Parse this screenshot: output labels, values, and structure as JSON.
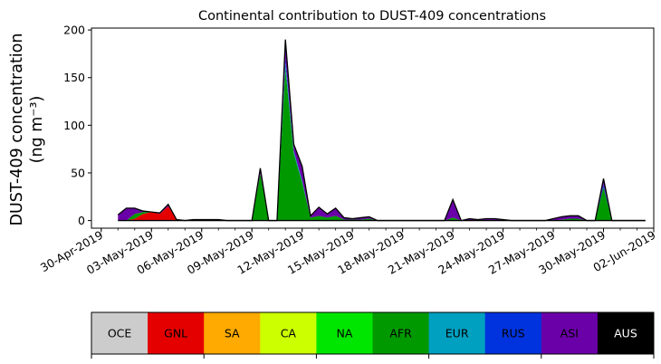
{
  "chart_data": {
    "type": "area",
    "stacked": true,
    "title": "Continental contribution to DUST-409 concentrations",
    "ylabel_line1": "DUST-409 concentration",
    "ylabel_line2": "(ng m⁻³)",
    "xlabel": "",
    "ylim": [
      -8,
      202
    ],
    "yticks": [
      0,
      50,
      100,
      150,
      200
    ],
    "xlim": [
      "2019-04-29T10:00",
      "2019-06-02T00:00"
    ],
    "xticks": [
      "2019-04-30",
      "2019-05-03",
      "2019-05-06",
      "2019-05-09",
      "2019-05-12",
      "2019-05-15",
      "2019-05-18",
      "2019-05-21",
      "2019-05-24",
      "2019-05-27",
      "2019-05-30",
      "2019-06-02"
    ],
    "xtick_labels": [
      "30-Apr-2019",
      "03-May-2019",
      "06-May-2019",
      "09-May-2019",
      "12-May-2019",
      "15-May-2019",
      "18-May-2019",
      "21-May-2019",
      "24-May-2019",
      "27-May-2019",
      "30-May-2019",
      "02-Jun-2019"
    ],
    "grid": false,
    "legend_placement": "below",
    "x": [
      "2019-05-01T00:00",
      "2019-05-01T12:00",
      "2019-05-02T00:00",
      "2019-05-02T12:00",
      "2019-05-03T00:00",
      "2019-05-03T12:00",
      "2019-05-04T00:00",
      "2019-05-04T12:00",
      "2019-05-05T00:00",
      "2019-05-05T12:00",
      "2019-05-06T00:00",
      "2019-05-06T12:00",
      "2019-05-07T00:00",
      "2019-05-07T12:00",
      "2019-05-08T00:00",
      "2019-05-08T12:00",
      "2019-05-09T00:00",
      "2019-05-09T12:00",
      "2019-05-10T00:00",
      "2019-05-10T12:00",
      "2019-05-11T00:00",
      "2019-05-11T12:00",
      "2019-05-12T00:00",
      "2019-05-12T12:00",
      "2019-05-13T00:00",
      "2019-05-13T12:00",
      "2019-05-14T00:00",
      "2019-05-14T12:00",
      "2019-05-15T00:00",
      "2019-05-15T12:00",
      "2019-05-16T00:00",
      "2019-05-16T12:00",
      "2019-05-17T00:00",
      "2019-05-17T12:00",
      "2019-05-18T00:00",
      "2019-05-18T12:00",
      "2019-05-19T00:00",
      "2019-05-19T12:00",
      "2019-05-20T00:00",
      "2019-05-20T12:00",
      "2019-05-21T00:00",
      "2019-05-21T12:00",
      "2019-05-22T00:00",
      "2019-05-22T12:00",
      "2019-05-23T00:00",
      "2019-05-23T12:00",
      "2019-05-24T00:00",
      "2019-05-24T12:00",
      "2019-05-25T00:00",
      "2019-05-25T12:00",
      "2019-05-26T00:00",
      "2019-05-26T12:00",
      "2019-05-27T00:00",
      "2019-05-27T12:00",
      "2019-05-28T00:00",
      "2019-05-28T12:00",
      "2019-05-29T00:00",
      "2019-05-29T12:00",
      "2019-05-30T00:00",
      "2019-05-30T12:00",
      "2019-05-31T00:00",
      "2019-05-31T12:00",
      "2019-06-01T00:00",
      "2019-06-01T12:00"
    ],
    "series": [
      {
        "name": "OCE",
        "color": "#cccccc",
        "values": [
          0,
          0,
          0,
          0,
          0,
          0,
          0,
          0,
          0,
          0,
          0,
          0,
          0,
          0,
          0,
          0,
          0,
          0,
          0,
          0,
          0,
          0,
          0,
          0,
          0,
          0,
          0,
          0,
          0,
          0,
          0,
          0,
          0,
          0,
          0,
          0,
          0,
          0,
          0,
          0,
          0,
          0,
          0,
          0,
          0,
          0,
          0,
          0,
          0,
          0,
          0,
          0,
          0,
          0,
          0,
          0,
          0,
          0,
          0,
          0,
          0,
          0,
          0,
          0
        ]
      },
      {
        "name": "GNL",
        "color": "#e50000",
        "values": [
          0,
          0,
          2,
          7,
          9,
          7,
          15,
          1,
          0,
          0,
          0,
          0,
          0,
          0,
          0,
          0,
          0,
          0,
          0,
          0,
          0,
          0,
          0,
          0,
          0,
          0,
          0,
          0,
          0,
          0,
          0,
          0,
          0,
          0,
          0,
          0,
          0,
          0,
          0,
          0,
          0,
          0,
          0,
          0,
          0,
          0,
          0,
          0,
          0,
          0,
          0,
          0,
          0,
          0,
          0,
          0,
          0,
          0,
          0,
          0,
          0,
          0,
          0,
          0
        ]
      },
      {
        "name": "SA",
        "color": "#ffaa00",
        "values": [
          0,
          0,
          0,
          0,
          0,
          0,
          0,
          0,
          0,
          0,
          0,
          0,
          0,
          0,
          0,
          0,
          0,
          0,
          0,
          0,
          0,
          0,
          0,
          0,
          0,
          0,
          0,
          0,
          0,
          0,
          0,
          0,
          0,
          0,
          0,
          0,
          0,
          0,
          0,
          0,
          0,
          0,
          0,
          0,
          0,
          0,
          0,
          0,
          0,
          0,
          0,
          0,
          0,
          0,
          0,
          0,
          0,
          0,
          0,
          0,
          0,
          0,
          0,
          0
        ]
      },
      {
        "name": "CA",
        "color": "#ccff00",
        "values": [
          0,
          0,
          0,
          0,
          0,
          0,
          0,
          0,
          0,
          0,
          0,
          0,
          0,
          0,
          0,
          0,
          0,
          0,
          0,
          0,
          0,
          0,
          0,
          0,
          0,
          0,
          0,
          0,
          0,
          0,
          0,
          0,
          0,
          0,
          0,
          0,
          0,
          0,
          0,
          0,
          0,
          0,
          0,
          0,
          0,
          0,
          0,
          0,
          0,
          0,
          0,
          0,
          0,
          0,
          0,
          0,
          0,
          0,
          0,
          0,
          0,
          0,
          0,
          0
        ]
      },
      {
        "name": "NA",
        "color": "#00e600",
        "values": [
          0,
          0,
          0,
          0,
          0,
          0,
          0,
          0,
          0,
          0,
          0,
          0,
          0,
          0,
          0,
          0,
          0,
          0,
          0,
          0,
          0,
          0,
          0,
          0,
          0,
          0,
          0,
          0,
          0,
          0,
          0,
          0,
          0,
          0,
          0,
          0,
          0,
          0,
          0,
          0,
          0,
          0,
          0,
          0,
          0,
          0,
          0,
          0,
          0,
          0,
          0,
          0,
          0,
          0,
          0,
          0,
          0,
          0,
          0,
          0,
          0,
          0,
          0,
          0
        ]
      },
      {
        "name": "AFR",
        "color": "#009900",
        "values": [
          0,
          0,
          5,
          2,
          0,
          0,
          0,
          0,
          0,
          1,
          1,
          1,
          1,
          0,
          0,
          0,
          0,
          49,
          0,
          0,
          160,
          70,
          40,
          3,
          5,
          3,
          5,
          1,
          1,
          1,
          2,
          0,
          0,
          0,
          0,
          0,
          0,
          0,
          0,
          0,
          3,
          0,
          0,
          0,
          0,
          0,
          0,
          0,
          0,
          0,
          0,
          0,
          0,
          1,
          2,
          2,
          0,
          0,
          35,
          0,
          0,
          0,
          0,
          0
        ]
      },
      {
        "name": "EUR",
        "color": "#00a0c0",
        "values": [
          0,
          0,
          0,
          0,
          0,
          0,
          0,
          0,
          0,
          0,
          0,
          0,
          0,
          0,
          0,
          0,
          0,
          0,
          0,
          0,
          5,
          3,
          2,
          0,
          0,
          0,
          0,
          0,
          0,
          0,
          0,
          0,
          0,
          0,
          0,
          0,
          0,
          0,
          0,
          0,
          0,
          0,
          0,
          0,
          0,
          0,
          0,
          0,
          0,
          0,
          0,
          0,
          0,
          0,
          0,
          0,
          0,
          0,
          0,
          0,
          0,
          0,
          0,
          0
        ]
      },
      {
        "name": "RUS",
        "color": "#0033dd",
        "values": [
          0,
          0,
          0,
          0,
          0,
          0,
          0,
          0,
          0,
          0,
          0,
          0,
          0,
          0,
          0,
          0,
          0,
          0,
          0,
          0,
          5,
          0,
          0,
          0,
          0,
          0,
          0,
          0,
          0,
          0,
          0,
          0,
          0,
          0,
          0,
          0,
          0,
          0,
          0,
          0,
          0,
          0,
          0,
          0,
          0,
          0,
          0,
          0,
          0,
          0,
          0,
          0,
          0,
          0,
          0,
          0,
          0,
          0,
          3,
          0,
          0,
          0,
          0,
          0
        ]
      },
      {
        "name": "ASI",
        "color": "#6a00a8",
        "values": [
          6,
          13,
          6,
          1,
          0,
          1,
          2,
          0,
          0,
          0,
          0,
          0,
          0,
          0,
          0,
          0,
          0,
          6,
          0,
          0,
          20,
          7,
          15,
          2,
          9,
          4,
          8,
          2,
          1,
          2,
          2,
          0,
          0,
          0,
          0,
          0,
          0,
          0,
          0,
          0,
          19,
          0,
          2,
          1,
          2,
          2,
          1,
          0,
          0,
          0,
          0,
          0,
          2,
          3,
          3,
          3,
          0,
          0,
          6,
          0,
          0,
          0,
          0,
          0
        ]
      },
      {
        "name": "AUS",
        "color": "#000000",
        "values": [
          0,
          0,
          0,
          0,
          0,
          0,
          0,
          0,
          0,
          0,
          0,
          0,
          0,
          0,
          0,
          0,
          0,
          0,
          0,
          0,
          0,
          0,
          0,
          0,
          0,
          0,
          0,
          0,
          0,
          0,
          0,
          0,
          0,
          0,
          0,
          0,
          0,
          0,
          0,
          0,
          0,
          0,
          0,
          0,
          0,
          0,
          0,
          0,
          0,
          0,
          0,
          0,
          0,
          0,
          0,
          0,
          0,
          0,
          0,
          0,
          0,
          0,
          0,
          0
        ]
      }
    ]
  },
  "legend": [
    {
      "label": "OCE",
      "color": "#cccccc",
      "text_color": "#000000"
    },
    {
      "label": "GNL",
      "color": "#e50000",
      "text_color": "#000000"
    },
    {
      "label": "SA",
      "color": "#ffaa00",
      "text_color": "#000000"
    },
    {
      "label": "CA",
      "color": "#ccff00",
      "text_color": "#000000"
    },
    {
      "label": "NA",
      "color": "#00e600",
      "text_color": "#000000"
    },
    {
      "label": "AFR",
      "color": "#009900",
      "text_color": "#000000"
    },
    {
      "label": "EUR",
      "color": "#00a0c0",
      "text_color": "#000000"
    },
    {
      "label": "RUS",
      "color": "#0033dd",
      "text_color": "#000000"
    },
    {
      "label": "ASI",
      "color": "#6a00a8",
      "text_color": "#000000"
    },
    {
      "label": "AUS",
      "color": "#000000",
      "text_color": "#ffffff"
    }
  ]
}
